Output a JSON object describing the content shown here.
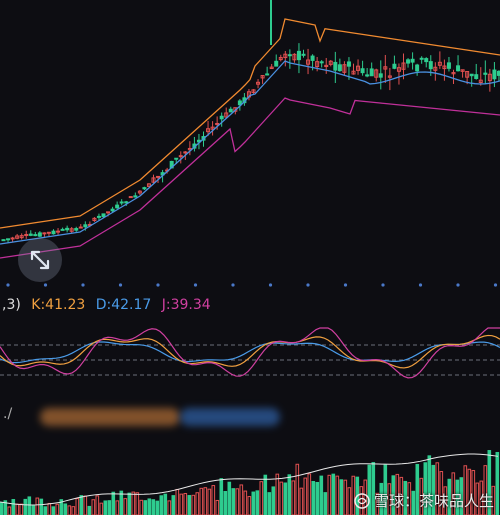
{
  "kdj": {
    "params_fragment": ",3)",
    "k_label": "K:41.23",
    "d_label": "D:42.17",
    "j_label": "J:39.34"
  },
  "volume": {
    "header_fragment": "./"
  },
  "watermark": {
    "text": "雪球：茶味品人生"
  },
  "colors": {
    "up": "#e05050",
    "down": "#2ecc8f",
    "k": "#f0a040",
    "d": "#4a9be8",
    "j": "#d040a0",
    "band_upper": "#f08a30",
    "band_lower": "#c0309a",
    "ma": "#4a90e0"
  },
  "icons": {
    "expand": "diagonal-expand-icon",
    "watermark_logo": "snowball-logo"
  }
}
